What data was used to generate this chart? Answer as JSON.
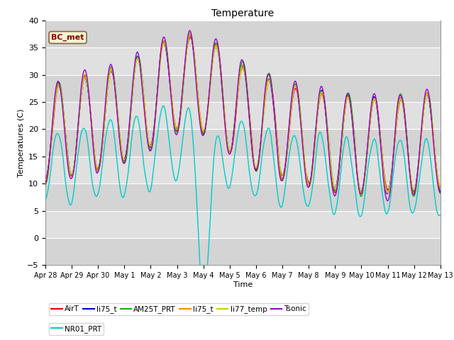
{
  "title": "Temperature",
  "xlabel": "Time",
  "ylabel": "Temperatures (C)",
  "ylim": [
    -5,
    40
  ],
  "annotation": "BC_met",
  "legend_labels": [
    "AirT",
    "li75_t",
    "AM25T_PRT",
    "li75_t",
    "li77_temp",
    "Tsonic",
    "NR01_PRT"
  ],
  "legend_colors": [
    "#dd0000",
    "#0000cc",
    "#00bb00",
    "#ff8800",
    "#cccc00",
    "#9900cc",
    "#00cccc"
  ],
  "xtick_labels": [
    "Apr 28",
    "Apr 29",
    "Apr 30",
    "May 1",
    "May 2",
    "May 3",
    "May 4",
    "May 5",
    "May 6",
    "May 7",
    "May 8",
    "May 9",
    "May 10",
    "May 11",
    "May 12",
    "May 13"
  ],
  "num_points": 720,
  "band_colors": [
    "#d4d4d4",
    "#e0e0e0"
  ],
  "yticks": [
    -5,
    0,
    5,
    10,
    15,
    20,
    25,
    30,
    35,
    40
  ]
}
